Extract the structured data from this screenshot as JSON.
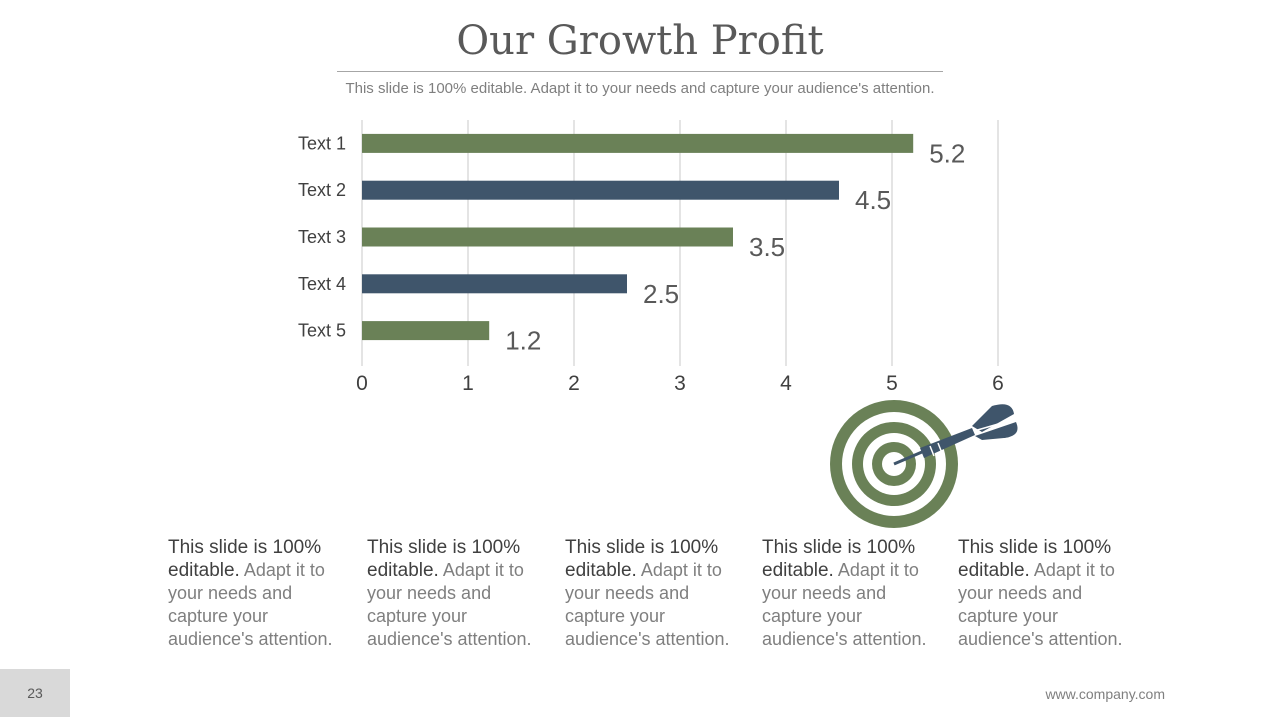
{
  "slide": {
    "title": "Our Growth Profit",
    "subtitle": "This slide is 100% editable. Adapt it to your needs and capture your audience's attention.",
    "page_number": "23",
    "website": "www.company.com"
  },
  "colors": {
    "green": "#6a8157",
    "navy": "#3f556b",
    "grid": "#c8c8c8",
    "text": "#404040"
  },
  "chart_data": {
    "type": "bar",
    "orientation": "horizontal",
    "categories": [
      "Text 1",
      "Text 2",
      "Text 3",
      "Text 4",
      "Text 5"
    ],
    "values": [
      5.2,
      4.5,
      3.5,
      2.5,
      1.2
    ],
    "data_labels": [
      "5.2",
      "4.5",
      "3.5",
      "2.5",
      "1.2"
    ],
    "bar_colors": [
      "#6a8157",
      "#3f556b",
      "#6a8157",
      "#3f556b",
      "#6a8157"
    ],
    "xlim": [
      0,
      6
    ],
    "x_ticks": [
      "0",
      "1",
      "2",
      "3",
      "4",
      "5",
      "6"
    ],
    "grid": "vertical",
    "title": "",
    "xlabel": "",
    "ylabel": ""
  },
  "columns": [
    {
      "lead": "This slide is 100% editable.",
      "rest": " Adapt it to your needs and capture your audience's attention."
    },
    {
      "lead": "This slide is 100% editable.",
      "rest": " Adapt it to your needs and capture your audience's attention."
    },
    {
      "lead": "This slide is 100% editable.",
      "rest": " Adapt it to your needs and capture your audience's attention."
    },
    {
      "lead": "This slide is 100% editable.",
      "rest": " Adapt it to your needs and capture your audience's attention."
    },
    {
      "lead": "This slide is 100% editable.",
      "rest": " Adapt it to your needs and capture your audience's attention."
    }
  ],
  "icons": {
    "target": "target-dart-icon"
  }
}
